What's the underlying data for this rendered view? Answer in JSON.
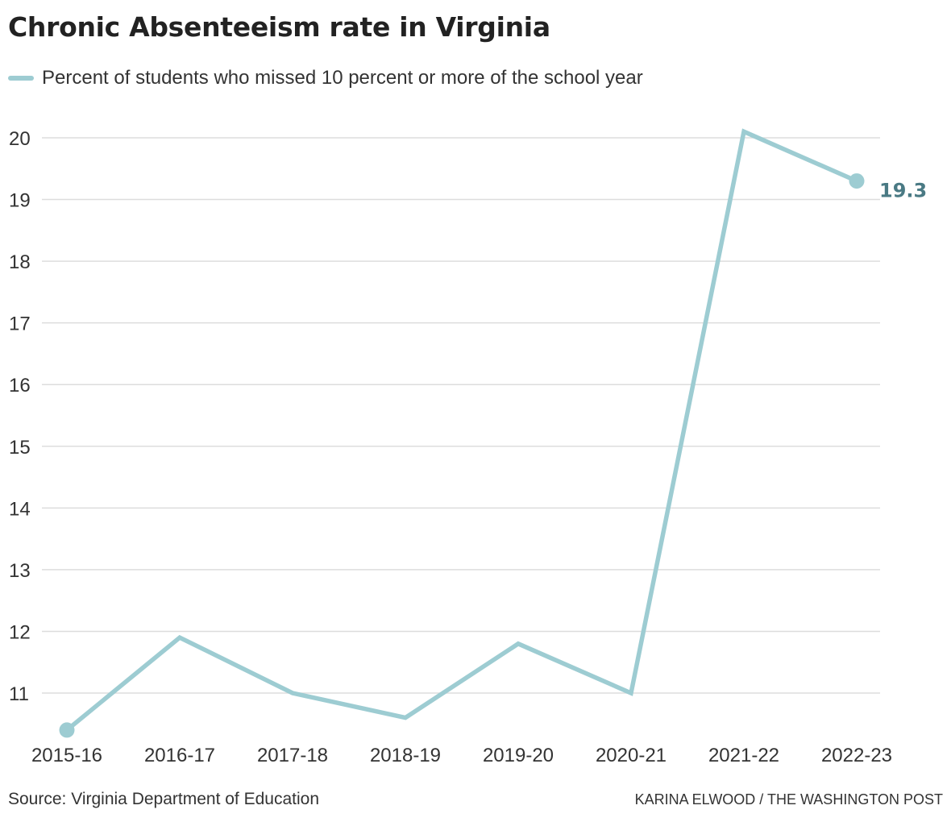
{
  "title": "Chronic Absenteeism rate in Virginia",
  "source": "Source: Virginia Department of Education",
  "credit": "KARINA ELWOOD / THE WASHINGTON POST",
  "colors": {
    "series": "#9dccd2",
    "end_label": "#4a7a84",
    "grid": "#dddddd",
    "text": "#333333"
  },
  "chart_data": {
    "type": "line",
    "title": "Chronic Absenteeism rate in Virginia",
    "xlabel": "",
    "ylabel": "",
    "categories": [
      "2015-16",
      "2016-17",
      "2017-18",
      "2018-19",
      "2019-20",
      "2020-21",
      "2021-22",
      "2022-23"
    ],
    "series": [
      {
        "name": "Percent of students who missed 10 percent or more of the school year",
        "values": [
          10.4,
          11.9,
          11.0,
          10.6,
          11.8,
          11.0,
          20.1,
          19.3
        ]
      }
    ],
    "yticks": [
      11,
      12,
      13,
      14,
      15,
      16,
      17,
      18,
      19,
      20
    ],
    "ylim": [
      10.4,
      20.1
    ],
    "end_label": "19.3",
    "grid": "horizontal",
    "legend": "top-left"
  }
}
